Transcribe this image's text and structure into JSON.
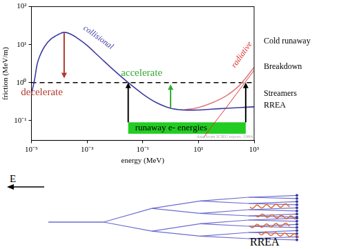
{
  "chart_data": {
    "type": "line",
    "x_label": "energy (MeV)",
    "y_label": "friction (MeV/m)",
    "log": true,
    "grid": false,
    "xlim": [
      1e-05,
      1000
    ],
    "ylim": [
      0.03,
      100
    ],
    "xticks": [
      {
        "value": 1e-05,
        "label": "10⁻⁵"
      },
      {
        "value": 0.001,
        "label": "10⁻³"
      },
      {
        "value": 0.1,
        "label": "10⁻¹"
      },
      {
        "value": 10,
        "label": "10¹"
      },
      {
        "value": 1000,
        "label": "10³"
      }
    ],
    "yticks": [
      {
        "value": 0.1,
        "label": "10⁻¹"
      },
      {
        "value": 1,
        "label": "10⁰"
      },
      {
        "value": 10,
        "label": "10¹"
      },
      {
        "value": 100,
        "label": "10²"
      }
    ],
    "series": [
      {
        "name": "collisional",
        "color": "#3b3aa0",
        "line_style": "solid",
        "x": [
          1e-05,
          1.3e-05,
          1.6e-05,
          2e-05,
          3e-05,
          5e-05,
          0.0001,
          0.00015,
          0.00025,
          0.0005,
          0.001,
          0.003,
          0.01,
          0.03,
          0.1,
          0.3,
          1,
          3,
          10,
          30,
          100,
          300,
          1000
        ],
        "values": [
          0.5,
          1.2,
          3,
          5,
          9,
          14,
          19,
          21,
          19,
          14,
          9.5,
          4.5,
          2,
          1,
          0.5,
          0.3,
          0.21,
          0.19,
          0.19,
          0.2,
          0.21,
          0.22,
          0.23
        ]
      },
      {
        "color": "#e07a7a",
        "line_style": "solid",
        "x": [
          3,
          10,
          30,
          100,
          300,
          1000
        ],
        "values": [
          0.19,
          0.22,
          0.29,
          0.45,
          0.85,
          2.5
        ]
      },
      {
        "name": "radiative",
        "color": "#e03030",
        "line_style": "solid",
        "x": [
          15,
          30,
          100,
          300,
          1000
        ],
        "values": [
          0.035,
          0.07,
          0.22,
          0.65,
          2.1
        ]
      }
    ],
    "threshold": 1,
    "band": {
      "label": "runaway e- energies",
      "color": "#22cc22",
      "x": [
        0.03,
        500
      ],
      "y": [
        0.045,
        0.09
      ]
    },
    "arrows": [
      {
        "label": "decelerate",
        "color": "#b03a2e",
        "x": 0.00015,
        "from": 20,
        "to": 1.3
      },
      {
        "label": "accelerate",
        "color": "#33aa33",
        "x": 1,
        "from": 0.22,
        "to": 0.9
      },
      {
        "color": "#000000",
        "x": 0.03,
        "from": 0.09,
        "to": 1
      },
      {
        "color": "#000000",
        "x": 500,
        "from": 0.09,
        "to": 1
      }
    ],
    "side_labels": [
      "Cold runaway",
      "Breakdown",
      "Streamers",
      "RREA"
    ],
    "credit": "data from ICRU report, 1984"
  },
  "diagram": {
    "field_label": "E",
    "label": "RREA"
  }
}
